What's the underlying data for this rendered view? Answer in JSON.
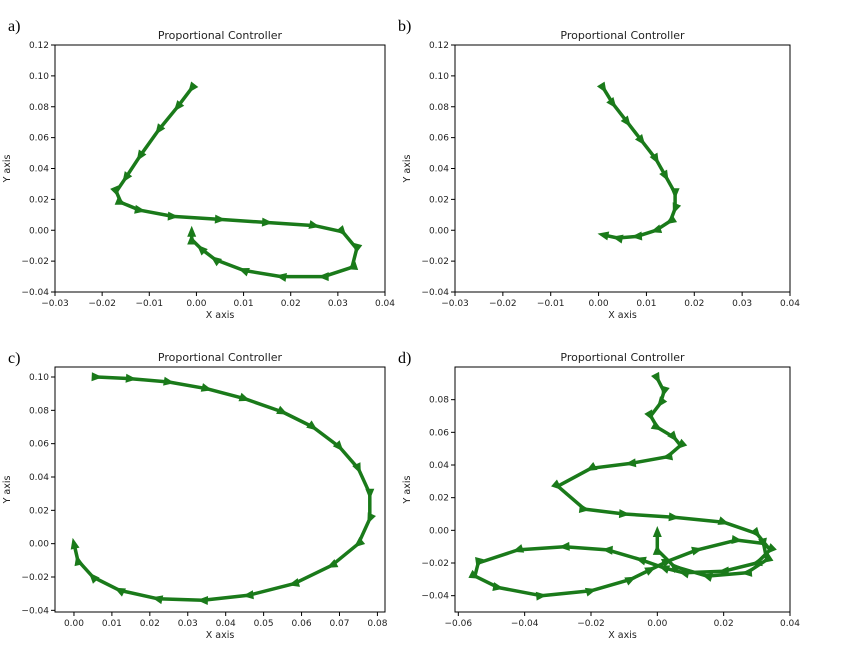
{
  "panel_letters": [
    "a)",
    "b)",
    "c)",
    "d)"
  ],
  "colors": {
    "arrows": "#1a7a1a",
    "axes": "#000000"
  },
  "chart_data": [
    {
      "type": "line",
      "title": "Proportional Controller",
      "xlabel": "X axis",
      "ylabel": "Y axis",
      "xlim": [
        -0.03,
        0.04
      ],
      "ylim": [
        -0.04,
        0.12
      ],
      "xticks": [
        -0.03,
        -0.02,
        -0.01,
        0.0,
        0.01,
        0.02,
        0.03,
        0.04
      ],
      "xtick_labels": [
        "−0.03",
        "−0.02",
        "−0.01",
        "0.00",
        "0.01",
        "0.02",
        "0.03",
        "0.04"
      ],
      "yticks": [
        -0.04,
        -0.02,
        0.0,
        0.02,
        0.04,
        0.06,
        0.08,
        0.1,
        0.12
      ],
      "ytick_labels": [
        "−0.04",
        "−0.02",
        "0.00",
        "0.02",
        "0.04",
        "0.06",
        "0.08",
        "0.10",
        "0.12"
      ],
      "marker": "arrow",
      "x": [
        -0.001,
        -0.004,
        -0.008,
        -0.012,
        -0.015,
        -0.017,
        -0.016,
        -0.012,
        -0.005,
        0.005,
        0.015,
        0.025,
        0.031,
        0.034,
        0.033,
        0.027,
        0.018,
        0.01,
        0.004,
        0.001,
        -0.001,
        -0.001
      ],
      "y": [
        0.092,
        0.08,
        0.065,
        0.048,
        0.034,
        0.025,
        0.018,
        0.013,
        0.009,
        0.007,
        0.005,
        0.003,
        -0.001,
        -0.012,
        -0.024,
        -0.03,
        -0.03,
        -0.026,
        -0.019,
        -0.012,
        -0.006,
        -0.001
      ]
    },
    {
      "type": "line",
      "title": "Proportional Controller",
      "xlabel": "X axis",
      "ylabel": "Y axis",
      "xlim": [
        -0.03,
        0.04
      ],
      "ylim": [
        -0.04,
        0.12
      ],
      "xticks": [
        -0.03,
        -0.02,
        -0.01,
        0.0,
        0.01,
        0.02,
        0.03,
        0.04
      ],
      "xtick_labels": [
        "−0.03",
        "−0.02",
        "−0.01",
        "0.00",
        "0.01",
        "0.02",
        "0.03",
        "0.04"
      ],
      "yticks": [
        -0.04,
        -0.02,
        0.0,
        0.02,
        0.04,
        0.06,
        0.08,
        0.1,
        0.12
      ],
      "ytick_labels": [
        "−0.04",
        "−0.02",
        "0.00",
        "0.02",
        "0.04",
        "0.06",
        "0.08",
        "0.10",
        "0.12"
      ],
      "marker": "arrow",
      "x": [
        0.001,
        0.003,
        0.006,
        0.009,
        0.012,
        0.014,
        0.016,
        0.016,
        0.015,
        0.012,
        0.008,
        0.004,
        0.001
      ],
      "y": [
        0.092,
        0.082,
        0.07,
        0.058,
        0.046,
        0.035,
        0.024,
        0.014,
        0.006,
        0.0,
        -0.004,
        -0.005,
        -0.003
      ]
    },
    {
      "type": "line",
      "title": "Proportional Controller",
      "xlabel": "X axis",
      "ylabel": "Y axis",
      "xlim": [
        -0.005,
        0.082
      ],
      "ylim": [
        -0.041,
        0.106
      ],
      "xticks": [
        0.0,
        0.01,
        0.02,
        0.03,
        0.04,
        0.05,
        0.06,
        0.07,
        0.08
      ],
      "xtick_labels": [
        "0.00",
        "0.01",
        "0.02",
        "0.03",
        "0.04",
        "0.05",
        "0.06",
        "0.07",
        "0.08"
      ],
      "yticks": [
        -0.04,
        -0.02,
        0.0,
        0.02,
        0.04,
        0.06,
        0.08,
        0.1
      ],
      "ytick_labels": [
        "−0.04",
        "−0.02",
        "0.00",
        "0.02",
        "0.04",
        "0.06",
        "0.08",
        "0.10"
      ],
      "marker": "arrow",
      "x": [
        0.006,
        0.015,
        0.025,
        0.035,
        0.045,
        0.055,
        0.063,
        0.07,
        0.075,
        0.078,
        0.078,
        0.075,
        0.068,
        0.058,
        0.046,
        0.034,
        0.022,
        0.012,
        0.005,
        0.001,
        0.0
      ],
      "y": [
        0.1,
        0.099,
        0.097,
        0.093,
        0.087,
        0.079,
        0.07,
        0.058,
        0.045,
        0.03,
        0.015,
        0.0,
        -0.013,
        -0.024,
        -0.031,
        -0.034,
        -0.033,
        -0.028,
        -0.02,
        -0.01,
        0.0
      ]
    },
    {
      "type": "line",
      "title": "Proportional Controller",
      "xlabel": "X axis",
      "ylabel": "Y axis",
      "xlim": [
        -0.061,
        0.04
      ],
      "ylim": [
        -0.05,
        0.1
      ],
      "xticks": [
        -0.06,
        -0.04,
        -0.02,
        0.0,
        0.02,
        0.04
      ],
      "xtick_labels": [
        "−0.06",
        "−0.04",
        "−0.02",
        "0.00",
        "0.02",
        "0.04"
      ],
      "yticks": [
        -0.04,
        -0.02,
        0.0,
        0.02,
        0.04,
        0.06,
        0.08
      ],
      "ytick_labels": [
        "−0.04",
        "−0.02",
        "0.00",
        "0.02",
        "0.04",
        "0.06",
        "0.08"
      ],
      "marker": "arrow",
      "x": [
        0.0,
        0.002,
        0.001,
        -0.002,
        0.0,
        0.005,
        0.007,
        0.003,
        -0.008,
        -0.02,
        -0.03,
        -0.022,
        -0.01,
        0.005,
        0.02,
        0.03,
        0.034,
        0.03,
        0.02,
        0.008,
        0.002,
        -0.005,
        -0.015,
        -0.028,
        -0.042,
        -0.054,
        -0.055,
        -0.048,
        -0.035,
        -0.02,
        -0.008,
        -0.002,
        0.003,
        0.012,
        0.024,
        0.032,
        0.033,
        0.027,
        0.015,
        0.005,
        0.0,
        0.0
      ],
      "y": [
        0.093,
        0.085,
        0.078,
        0.07,
        0.063,
        0.057,
        0.052,
        0.045,
        0.041,
        0.038,
        0.027,
        0.013,
        0.01,
        0.008,
        0.005,
        -0.002,
        -0.012,
        -0.02,
        -0.025,
        -0.026,
        -0.023,
        -0.018,
        -0.012,
        -0.01,
        -0.012,
        -0.02,
        -0.028,
        -0.035,
        -0.04,
        -0.037,
        -0.03,
        -0.024,
        -0.019,
        -0.012,
        -0.006,
        -0.008,
        -0.018,
        -0.026,
        -0.028,
        -0.022,
        -0.012,
        -0.001
      ]
    }
  ]
}
